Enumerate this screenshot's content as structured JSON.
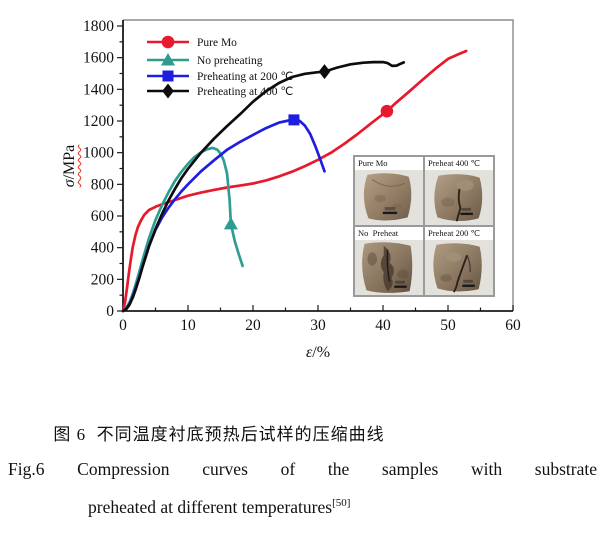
{
  "chart_data": {
    "type": "line",
    "title": "",
    "xlabel": "ε/%",
    "ylabel": "σ/MPa",
    "xlim": [
      0,
      60
    ],
    "ylim": [
      0,
      1800
    ],
    "xticks": [
      0,
      10,
      20,
      30,
      40,
      50,
      60
    ],
    "x_minor_step": 5,
    "yticks": [
      0,
      200,
      400,
      600,
      800,
      1000,
      1200,
      1400,
      1600,
      1800
    ],
    "y_minor_step": 100,
    "grid": false,
    "legend_position": "top-left-inside",
    "series": [
      {
        "name": "Pure Mo",
        "color": "#e8192c",
        "marker": "circle",
        "marker_at": [
          40.6,
          1262
        ],
        "points": [
          [
            0,
            0
          ],
          [
            0.3,
            55
          ],
          [
            0.6,
            140
          ],
          [
            0.9,
            235
          ],
          [
            1.2,
            325
          ],
          [
            1.5,
            405
          ],
          [
            1.9,
            475
          ],
          [
            2.3,
            530
          ],
          [
            2.8,
            575
          ],
          [
            3.3,
            608
          ],
          [
            4,
            638
          ],
          [
            5,
            658
          ],
          [
            6,
            674
          ],
          [
            7,
            688
          ],
          [
            8,
            701
          ],
          [
            10,
            728
          ],
          [
            12,
            748
          ],
          [
            14,
            765
          ],
          [
            16,
            780
          ],
          [
            18,
            792
          ],
          [
            20,
            805
          ],
          [
            22,
            825
          ],
          [
            24,
            850
          ],
          [
            26,
            880
          ],
          [
            28,
            915
          ],
          [
            30,
            955
          ],
          [
            32,
            1000
          ],
          [
            34,
            1055
          ],
          [
            36,
            1115
          ],
          [
            38,
            1180
          ],
          [
            40.6,
            1262
          ],
          [
            42,
            1315
          ],
          [
            44,
            1385
          ],
          [
            46,
            1458
          ],
          [
            48,
            1528
          ],
          [
            50,
            1592
          ],
          [
            51.5,
            1620
          ],
          [
            52.8,
            1642
          ]
        ]
      },
      {
        "name": "No preheating",
        "color": "#2f9c92",
        "marker": "triangle",
        "marker_at": [
          16.6,
          550
        ],
        "points": [
          [
            0,
            0
          ],
          [
            0.5,
            20
          ],
          [
            1,
            55
          ],
          [
            1.5,
            110
          ],
          [
            2,
            175
          ],
          [
            2.5,
            248
          ],
          [
            3,
            320
          ],
          [
            3.5,
            392
          ],
          [
            4,
            460
          ],
          [
            5,
            575
          ],
          [
            6,
            668
          ],
          [
            7,
            750
          ],
          [
            8,
            822
          ],
          [
            9,
            880
          ],
          [
            10,
            930
          ],
          [
            11,
            972
          ],
          [
            12,
            1002
          ],
          [
            13,
            1022
          ],
          [
            13.8,
            1030
          ],
          [
            14.5,
            1018
          ],
          [
            15,
            995
          ],
          [
            15.5,
            950
          ],
          [
            16,
            870
          ],
          [
            16.4,
            700
          ],
          [
            16.6,
            550
          ],
          [
            17.2,
            440
          ],
          [
            17.8,
            360
          ],
          [
            18.4,
            285
          ]
        ]
      },
      {
        "name": "Preheating at 200 ℃",
        "color": "#1e1ee0",
        "marker": "square",
        "marker_at": [
          26.3,
          1207
        ],
        "points": [
          [
            0,
            0
          ],
          [
            0.5,
            15
          ],
          [
            1,
            45
          ],
          [
            1.5,
            92
          ],
          [
            2,
            150
          ],
          [
            2.5,
            215
          ],
          [
            3,
            282
          ],
          [
            4,
            412
          ],
          [
            5,
            512
          ],
          [
            6,
            590
          ],
          [
            7,
            652
          ],
          [
            8,
            706
          ],
          [
            9,
            756
          ],
          [
            10,
            800
          ],
          [
            12,
            882
          ],
          [
            14,
            952
          ],
          [
            16,
            1018
          ],
          [
            18,
            1068
          ],
          [
            20,
            1112
          ],
          [
            22,
            1155
          ],
          [
            24,
            1190
          ],
          [
            25.5,
            1203
          ],
          [
            26.3,
            1207
          ],
          [
            27.2,
            1200
          ],
          [
            28,
            1170
          ],
          [
            28.8,
            1118
          ],
          [
            29.6,
            1040
          ],
          [
            30.4,
            952
          ],
          [
            31,
            882
          ]
        ]
      },
      {
        "name": "Preheating at 400 ℃",
        "color": "#0d0d0d",
        "marker": "diamond",
        "marker_at": [
          31,
          1512
        ],
        "points": [
          [
            0,
            0
          ],
          [
            0.5,
            12
          ],
          [
            1,
            40
          ],
          [
            1.5,
            85
          ],
          [
            2,
            142
          ],
          [
            2.5,
            208
          ],
          [
            3,
            278
          ],
          [
            4,
            408
          ],
          [
            5,
            518
          ],
          [
            6,
            612
          ],
          [
            7,
            698
          ],
          [
            8,
            772
          ],
          [
            9,
            840
          ],
          [
            10,
            898
          ],
          [
            12,
            1000
          ],
          [
            14,
            1088
          ],
          [
            16,
            1168
          ],
          [
            18,
            1242
          ],
          [
            20,
            1322
          ],
          [
            22,
            1388
          ],
          [
            24,
            1440
          ],
          [
            26,
            1478
          ],
          [
            28,
            1498
          ],
          [
            30,
            1508
          ],
          [
            31,
            1512
          ],
          [
            33,
            1538
          ],
          [
            35,
            1558
          ],
          [
            37,
            1568
          ],
          [
            38.5,
            1572
          ],
          [
            40,
            1572
          ],
          [
            40.7,
            1566
          ],
          [
            41.4,
            1548
          ],
          [
            42.1,
            1550
          ],
          [
            42.7,
            1562
          ],
          [
            43.2,
            1570
          ]
        ]
      }
    ]
  },
  "inset": {
    "panels": [
      {
        "label": "Pure Mo"
      },
      {
        "label": "Preheat 400 ℃"
      },
      {
        "label_a": "No  ",
        "label_b": "Preheat"
      },
      {
        "label": "Preheat 200 ℃"
      }
    ]
  },
  "caption": {
    "zh": "图 6  不同温度衬底预热后试样的压缩曲线",
    "en_line1": "Fig.6 Compression curves of the samples with substrate",
    "en_line2": "preheated at different temperatures",
    "en_ref": "[50]"
  }
}
